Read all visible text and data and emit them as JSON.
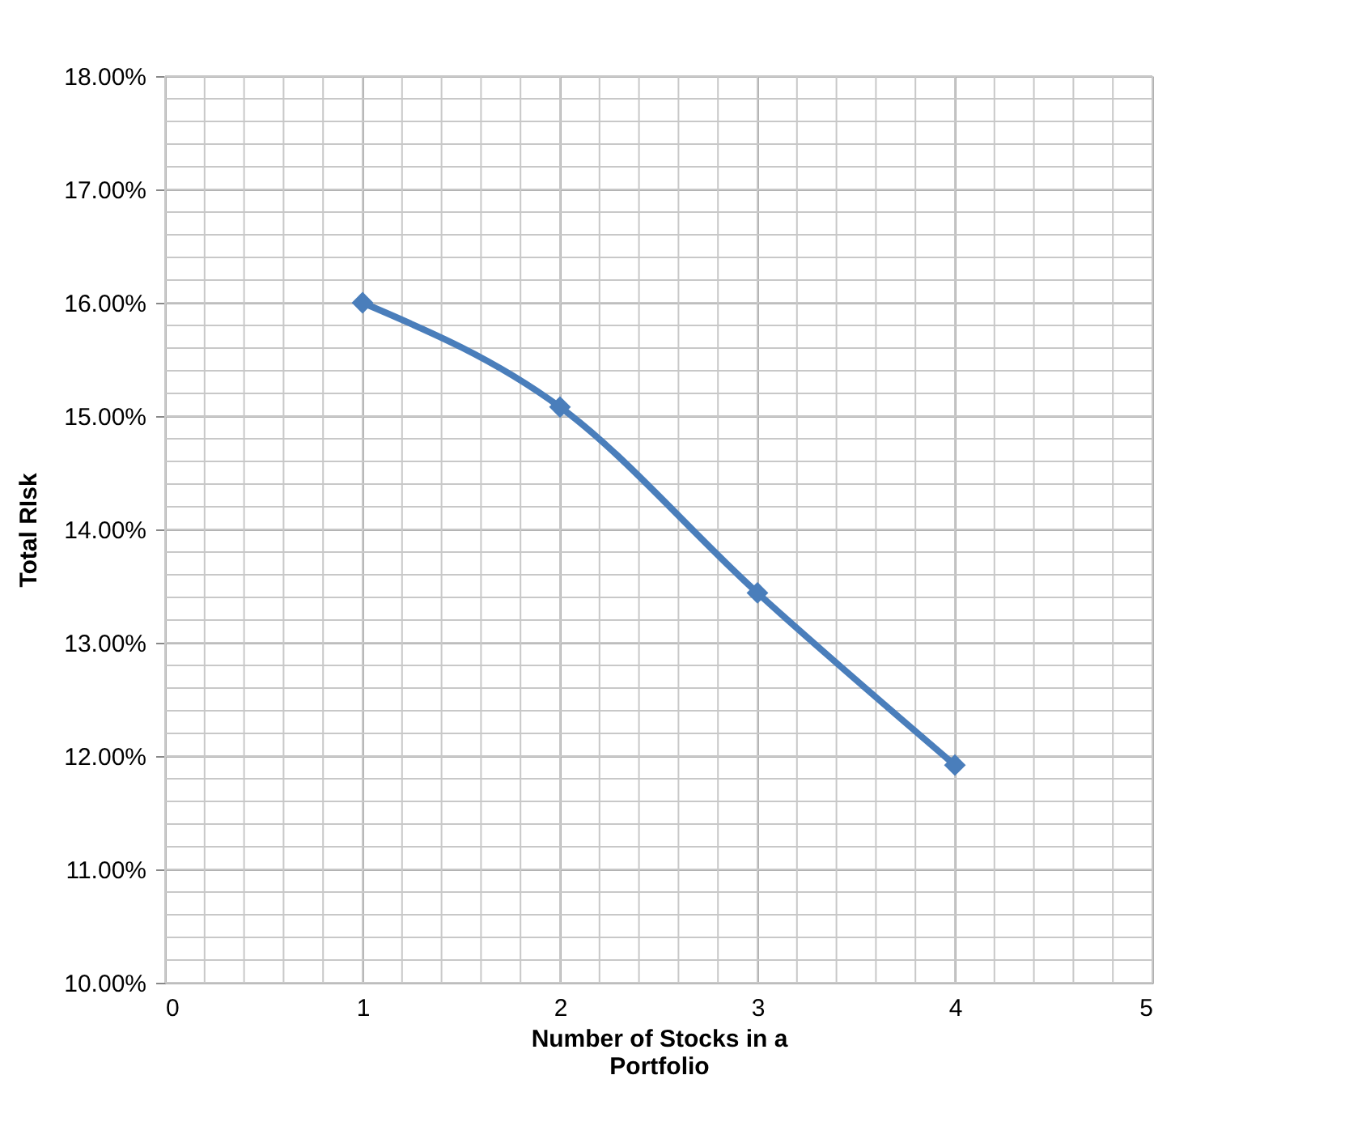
{
  "chart_data": {
    "type": "line",
    "x": [
      1,
      2,
      3,
      4
    ],
    "series": [
      {
        "color": "#4a7ebb",
        "values": [
          16.0,
          15.08,
          13.44,
          11.92
        ]
      }
    ],
    "xlabel": "Number of  Stocks in a Portfolio",
    "ylabel": "Total RIsk",
    "xlim": [
      0,
      5
    ],
    "xticks": [
      0,
      1,
      2,
      3,
      4,
      5
    ],
    "ylim": [
      10,
      18
    ],
    "yticks": [
      {
        "value": 10,
        "label": "10.00%"
      },
      {
        "value": 11,
        "label": "11.00%"
      },
      {
        "value": 12,
        "label": "12.00%"
      },
      {
        "value": 13,
        "label": "13.00%"
      },
      {
        "value": 14,
        "label": "14.00%"
      },
      {
        "value": 15,
        "label": "15.00%"
      },
      {
        "value": 16,
        "label": "16.00%"
      },
      {
        "value": 17,
        "label": "17.00%"
      },
      {
        "value": 18,
        "label": "18.00%"
      }
    ],
    "grid": true,
    "marker": "diamond",
    "line_style": "solid"
  }
}
